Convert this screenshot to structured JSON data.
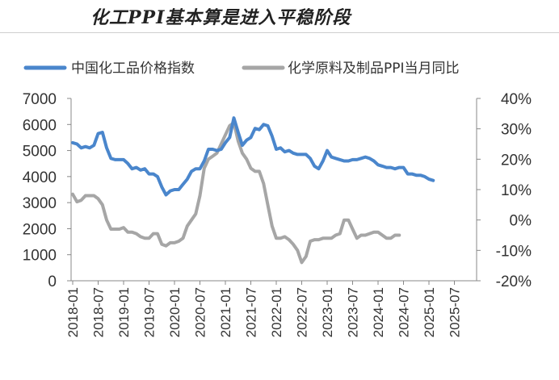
{
  "title": "化工PPI基本算是进入平稳阶段",
  "chart_data": {
    "type": "line",
    "title": "化工PPI基本算是进入平稳阶段",
    "left_axis": {
      "ylim": [
        0,
        7000
      ],
      "ticks": [
        0,
        1000,
        2000,
        3000,
        4000,
        5000,
        6000,
        7000
      ]
    },
    "right_axis": {
      "ylim": [
        -20,
        40
      ],
      "ticks": [
        "-20%",
        "-10%",
        "0%",
        "10%",
        "20%",
        "30%",
        "40%"
      ],
      "tick_values": [
        -20,
        -10,
        0,
        10,
        20,
        30,
        40
      ]
    },
    "x_ticks": [
      "2018-01",
      "2018-07",
      "2019-01",
      "2019-07",
      "2020-01",
      "2020-07",
      "2021-01",
      "2021-07",
      "2022-01",
      "2022-07",
      "2023-01",
      "2023-07",
      "2024-01",
      "2024-07",
      "2025-01",
      "2025-07"
    ],
    "x_start": "2018-01",
    "legend": [
      "中国化工品价格指数",
      "化学原料及制品PPI当月同比"
    ],
    "legend_position": "top",
    "series": [
      {
        "name": "中国化工品价格指数",
        "axis": "left",
        "color": "#4a86cc",
        "values": [
          5300,
          5250,
          5100,
          5150,
          5100,
          5200,
          5650,
          5700,
          5100,
          4700,
          4650,
          4650,
          4650,
          4500,
          4300,
          4350,
          4250,
          4300,
          4100,
          4100,
          4000,
          3600,
          3300,
          3450,
          3500,
          3500,
          3700,
          3900,
          4200,
          4300,
          4300,
          4600,
          5050,
          5050,
          5000,
          5050,
          5300,
          5500,
          6250,
          5700,
          5200,
          5400,
          5500,
          5850,
          5800,
          6000,
          5950,
          5550,
          5050,
          5100,
          4950,
          5000,
          4900,
          4850,
          4850,
          4850,
          4700,
          4400,
          4300,
          4600,
          5000,
          4750,
          4700,
          4650,
          4600,
          4600,
          4650,
          4650,
          4700,
          4750,
          4700,
          4600,
          4450,
          4400,
          4350,
          4350,
          4300,
          4350,
          4350,
          4100,
          4100,
          4050,
          4050,
          4000,
          3900,
          3850
        ]
      },
      {
        "name": "化学原料及制品PPI当月同比",
        "axis": "right",
        "color": "#a6a6a6",
        "values": [
          8.5,
          6,
          6.5,
          8,
          8,
          8,
          7,
          5,
          0,
          -3,
          -3,
          -3,
          -2.5,
          -4,
          -4,
          -4.5,
          -5.5,
          -6,
          -6,
          -4.5,
          -4.5,
          -8,
          -8.5,
          -7.5,
          -7.5,
          -7,
          -6,
          -2,
          0,
          2,
          8,
          17,
          20,
          21,
          22,
          25,
          28,
          31,
          32,
          26,
          22,
          20,
          17,
          16,
          16,
          12,
          5,
          -2,
          -6,
          -6,
          -5.5,
          -6.5,
          -8,
          -10,
          -14,
          -12,
          -7,
          -6.5,
          -6.5,
          -6,
          -6,
          -6,
          -5,
          -4.5,
          0,
          0,
          -3,
          -6,
          -5,
          -5,
          -4.5,
          -4,
          -4,
          -5,
          -6,
          -6,
          -5,
          -5
        ]
      }
    ]
  }
}
